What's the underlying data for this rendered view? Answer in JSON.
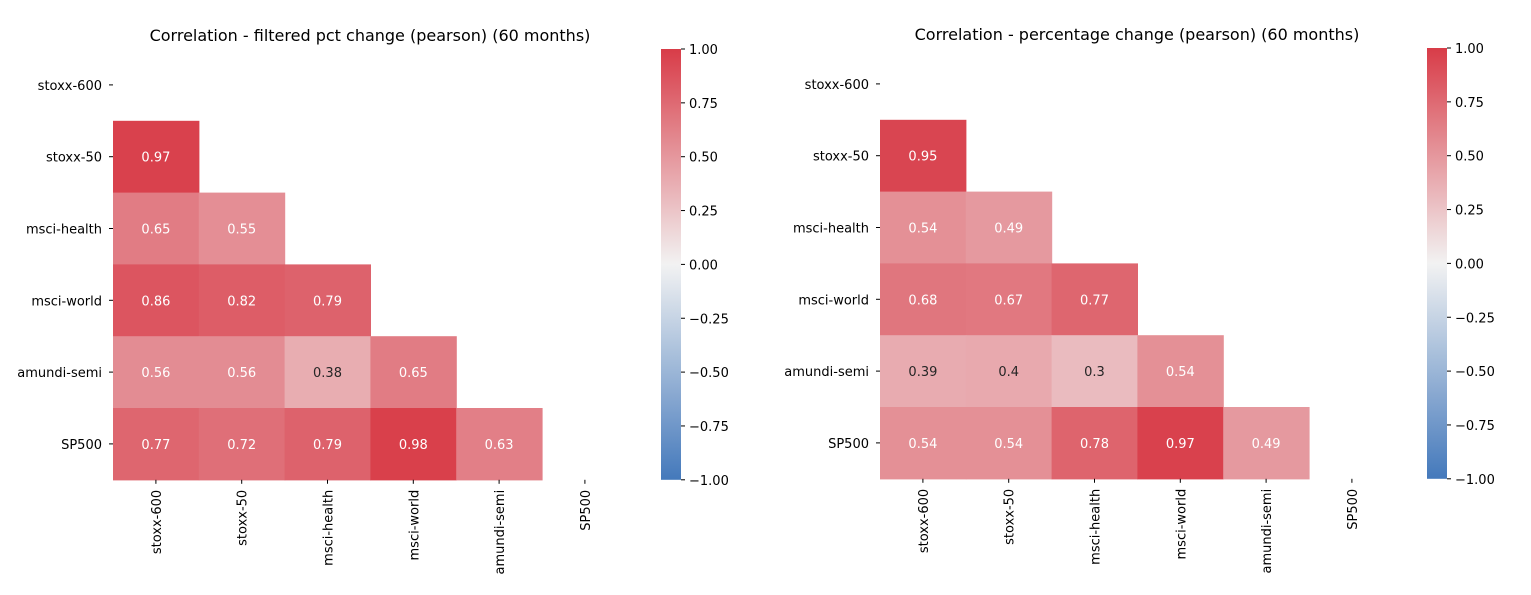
{
  "chart_data": [
    {
      "type": "heatmap",
      "title": "Correlation - filtered pct change (pearson) (60 months)",
      "labels": [
        "stoxx-600",
        "stoxx-50",
        "msci-health",
        "msci-world",
        "amundi-semi",
        "SP500"
      ],
      "mask": "upper-triangle-including-diagonal",
      "values": [
        [
          null,
          null,
          null,
          null,
          null,
          null
        ],
        [
          0.97,
          null,
          null,
          null,
          null,
          null
        ],
        [
          0.65,
          0.55,
          null,
          null,
          null,
          null
        ],
        [
          0.86,
          0.82,
          0.79,
          null,
          null,
          null
        ],
        [
          0.56,
          0.56,
          0.38,
          0.65,
          null,
          null
        ],
        [
          0.77,
          0.72,
          0.79,
          0.98,
          0.63,
          null
        ]
      ],
      "colorbar": {
        "vmin": -1.0,
        "vmax": 1.0,
        "ticks": [
          "1.00",
          "0.75",
          "0.50",
          "0.25",
          "0.00",
          "−0.25",
          "−0.50",
          "−0.75",
          "−1.00"
        ]
      },
      "colors": {
        "negative": "#4479bb",
        "neutral": "#f2f2f2",
        "positive": "#d83c48"
      }
    },
    {
      "type": "heatmap",
      "title": "Correlation - percentage change (pearson) (60 months)",
      "labels": [
        "stoxx-600",
        "stoxx-50",
        "msci-health",
        "msci-world",
        "amundi-semi",
        "SP500"
      ],
      "mask": "upper-triangle-including-diagonal",
      "values": [
        [
          null,
          null,
          null,
          null,
          null,
          null
        ],
        [
          0.95,
          null,
          null,
          null,
          null,
          null
        ],
        [
          0.54,
          0.49,
          null,
          null,
          null,
          null
        ],
        [
          0.68,
          0.67,
          0.77,
          null,
          null,
          null
        ],
        [
          0.39,
          0.4,
          0.3,
          0.54,
          null,
          null
        ],
        [
          0.54,
          0.54,
          0.78,
          0.97,
          0.49,
          null
        ]
      ],
      "colorbar": {
        "vmin": -1.0,
        "vmax": 1.0,
        "ticks": [
          "1.00",
          "0.75",
          "0.50",
          "0.25",
          "0.00",
          "−0.25",
          "−0.50",
          "−0.75",
          "−1.00"
        ]
      },
      "colors": {
        "negative": "#4479bb",
        "neutral": "#f2f2f2",
        "positive": "#d83c48"
      }
    }
  ]
}
